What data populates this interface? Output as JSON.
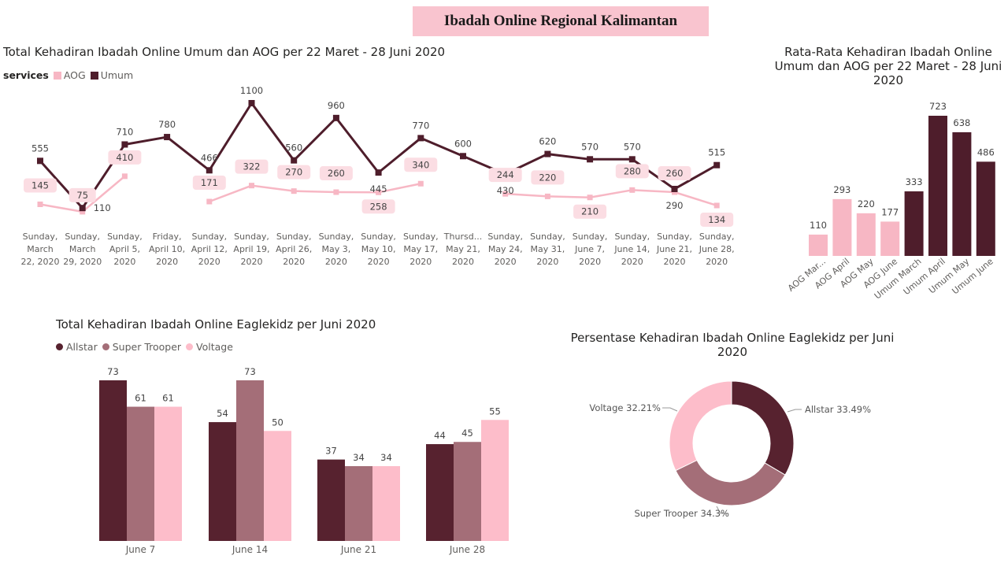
{
  "header": {
    "title": "Ibadah Online Regional Kalimantan"
  },
  "colors": {
    "umum": "#4e1d2b",
    "aog": "#f7b7c4",
    "allstar": "#57222f",
    "super_trooper": "#a46e78",
    "voltage": "#fdbdca",
    "label_bg": "#fbdde3",
    "title_bg": "#f9c4cf"
  },
  "chart_data": [
    {
      "id": "line",
      "type": "line",
      "title": "Total Kehadiran Ibadah Online Umum dan AOG per 22 Maret - 28 Juni 2020",
      "legend_title": "services",
      "legend": [
        "AOG",
        "Umum"
      ],
      "categories": [
        [
          "Sunday,",
          "March",
          "22, 2020"
        ],
        [
          "Sunday,",
          "March",
          "29, 2020"
        ],
        [
          "Sunday,",
          "April 5,",
          "2020"
        ],
        [
          "Friday,",
          "April 10,",
          "2020"
        ],
        [
          "Sunday,",
          "April 12,",
          "2020"
        ],
        [
          "Sunday,",
          "April 19,",
          "2020"
        ],
        [
          "Sunday,",
          "April 26,",
          "2020"
        ],
        [
          "Sunday,",
          "May 3,",
          "2020"
        ],
        [
          "Sunday,",
          "May 10,",
          "2020"
        ],
        [
          "Sunday,",
          "May 17,",
          "2020"
        ],
        [
          "Thursd...",
          "May 21,",
          "2020"
        ],
        [
          "Sunday,",
          "May 24,",
          "2020"
        ],
        [
          "Sunday,",
          "May 31,",
          "2020"
        ],
        [
          "Sunday,",
          "June 7,",
          "2020"
        ],
        [
          "Sunday,",
          "June 14,",
          "2020"
        ],
        [
          "Sunday,",
          "June 21,",
          "2020"
        ],
        [
          "Sunday,",
          "June 28,",
          "2020"
        ]
      ],
      "series": [
        {
          "name": "Umum",
          "values": [
            555,
            110,
            710,
            780,
            466,
            1100,
            560,
            960,
            445,
            770,
            600,
            430,
            620,
            570,
            570,
            290,
            515
          ]
        },
        {
          "name": "AOG",
          "values": [
            145,
            75,
            410,
            null,
            171,
            322,
            270,
            260,
            258,
            340,
            null,
            244,
            220,
            210,
            280,
            260,
            134
          ]
        }
      ],
      "ylim": [
        0,
        1100
      ]
    },
    {
      "id": "avg",
      "type": "bar",
      "title": "Rata-Rata Kehadiran Ibadah Online Umum dan AOG per 22 Maret - 28 Juni 2020",
      "categories": [
        "AOG Mar...",
        "AOG April",
        "AOG May",
        "AOG June",
        "Umum March",
        "Umum April",
        "Umum May",
        "Umum June"
      ],
      "values": [
        110,
        293,
        220,
        177,
        333,
        723,
        638,
        486
      ],
      "ylim": [
        0,
        723
      ]
    },
    {
      "id": "kidz",
      "type": "bar",
      "title": "Total Kehadiran Ibadah Online Eaglekidz per Juni 2020",
      "categories": [
        "June 7",
        "June 14",
        "June 21",
        "June 28"
      ],
      "series": [
        {
          "name": "Allstar",
          "values": [
            73,
            54,
            37,
            44
          ]
        },
        {
          "name": "Super Trooper",
          "values": [
            61,
            73,
            34,
            45
          ]
        },
        {
          "name": "Voltage",
          "values": [
            61,
            50,
            34,
            55
          ]
        }
      ],
      "ylim": [
        0,
        73
      ]
    },
    {
      "id": "donut",
      "type": "pie",
      "title": "Persentase Kehadiran Ibadah Online Eaglekidz per Juni 2020",
      "slices": [
        {
          "name": "Allstar",
          "value": 33.49,
          "label": "Allstar 33.49%"
        },
        {
          "name": "Super Trooper",
          "value": 34.3,
          "label": "Super Trooper 34.3%"
        },
        {
          "name": "Voltage",
          "value": 32.21,
          "label": "Voltage 32.21%"
        }
      ]
    }
  ]
}
